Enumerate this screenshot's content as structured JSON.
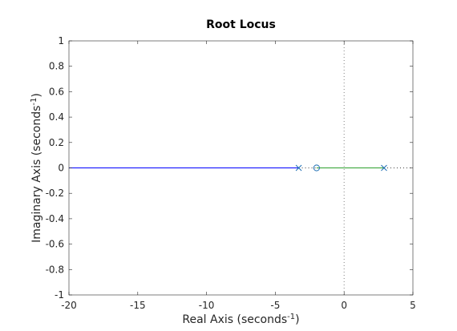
{
  "chart_data": {
    "type": "line",
    "title": "Root Locus",
    "xlabel": {
      "text": "Real Axis (seconds",
      "superscript": "-1",
      "suffix": ")"
    },
    "ylabel": {
      "text": "Imaginary Axis (seconds",
      "superscript": "-1",
      "suffix": ")"
    },
    "xlim": [
      -20,
      5
    ],
    "ylim": [
      -1,
      1
    ],
    "xticks": [
      -20,
      -15,
      -10,
      -5,
      0,
      5
    ],
    "yticks": [
      -1,
      -0.8,
      -0.6,
      -0.4,
      -0.2,
      0,
      0.2,
      0.4,
      0.6,
      0.8,
      1
    ],
    "grid": false,
    "colors": {
      "branch_1": "#0000ff",
      "branch_2": "#2ca02c",
      "axes": "#262626",
      "pole_zero": "#1f6fb4",
      "reference": "#808080"
    },
    "series": [
      {
        "x": [
          -20,
          -3.3
        ],
        "y": [
          0,
          0
        ],
        "color": "#0000ff",
        "style": "solid"
      },
      {
        "x": [
          -2,
          2.9
        ],
        "y": [
          0,
          0
        ],
        "color": "#2ca02c",
        "style": "solid"
      }
    ],
    "asymptote_segments": [
      {
        "x": [
          -3.3,
          -2
        ],
        "y": [
          0,
          0
        ]
      },
      {
        "x": [
          2.9,
          5
        ],
        "y": [
          0,
          0
        ]
      }
    ],
    "poles": [
      {
        "x": -3.3,
        "y": 0
      },
      {
        "x": 2.9,
        "y": 0
      }
    ],
    "zeros": [
      {
        "x": -2,
        "y": 0
      }
    ],
    "reference_lines": {
      "vertical_x": 0,
      "horizontal_y": 0
    }
  }
}
